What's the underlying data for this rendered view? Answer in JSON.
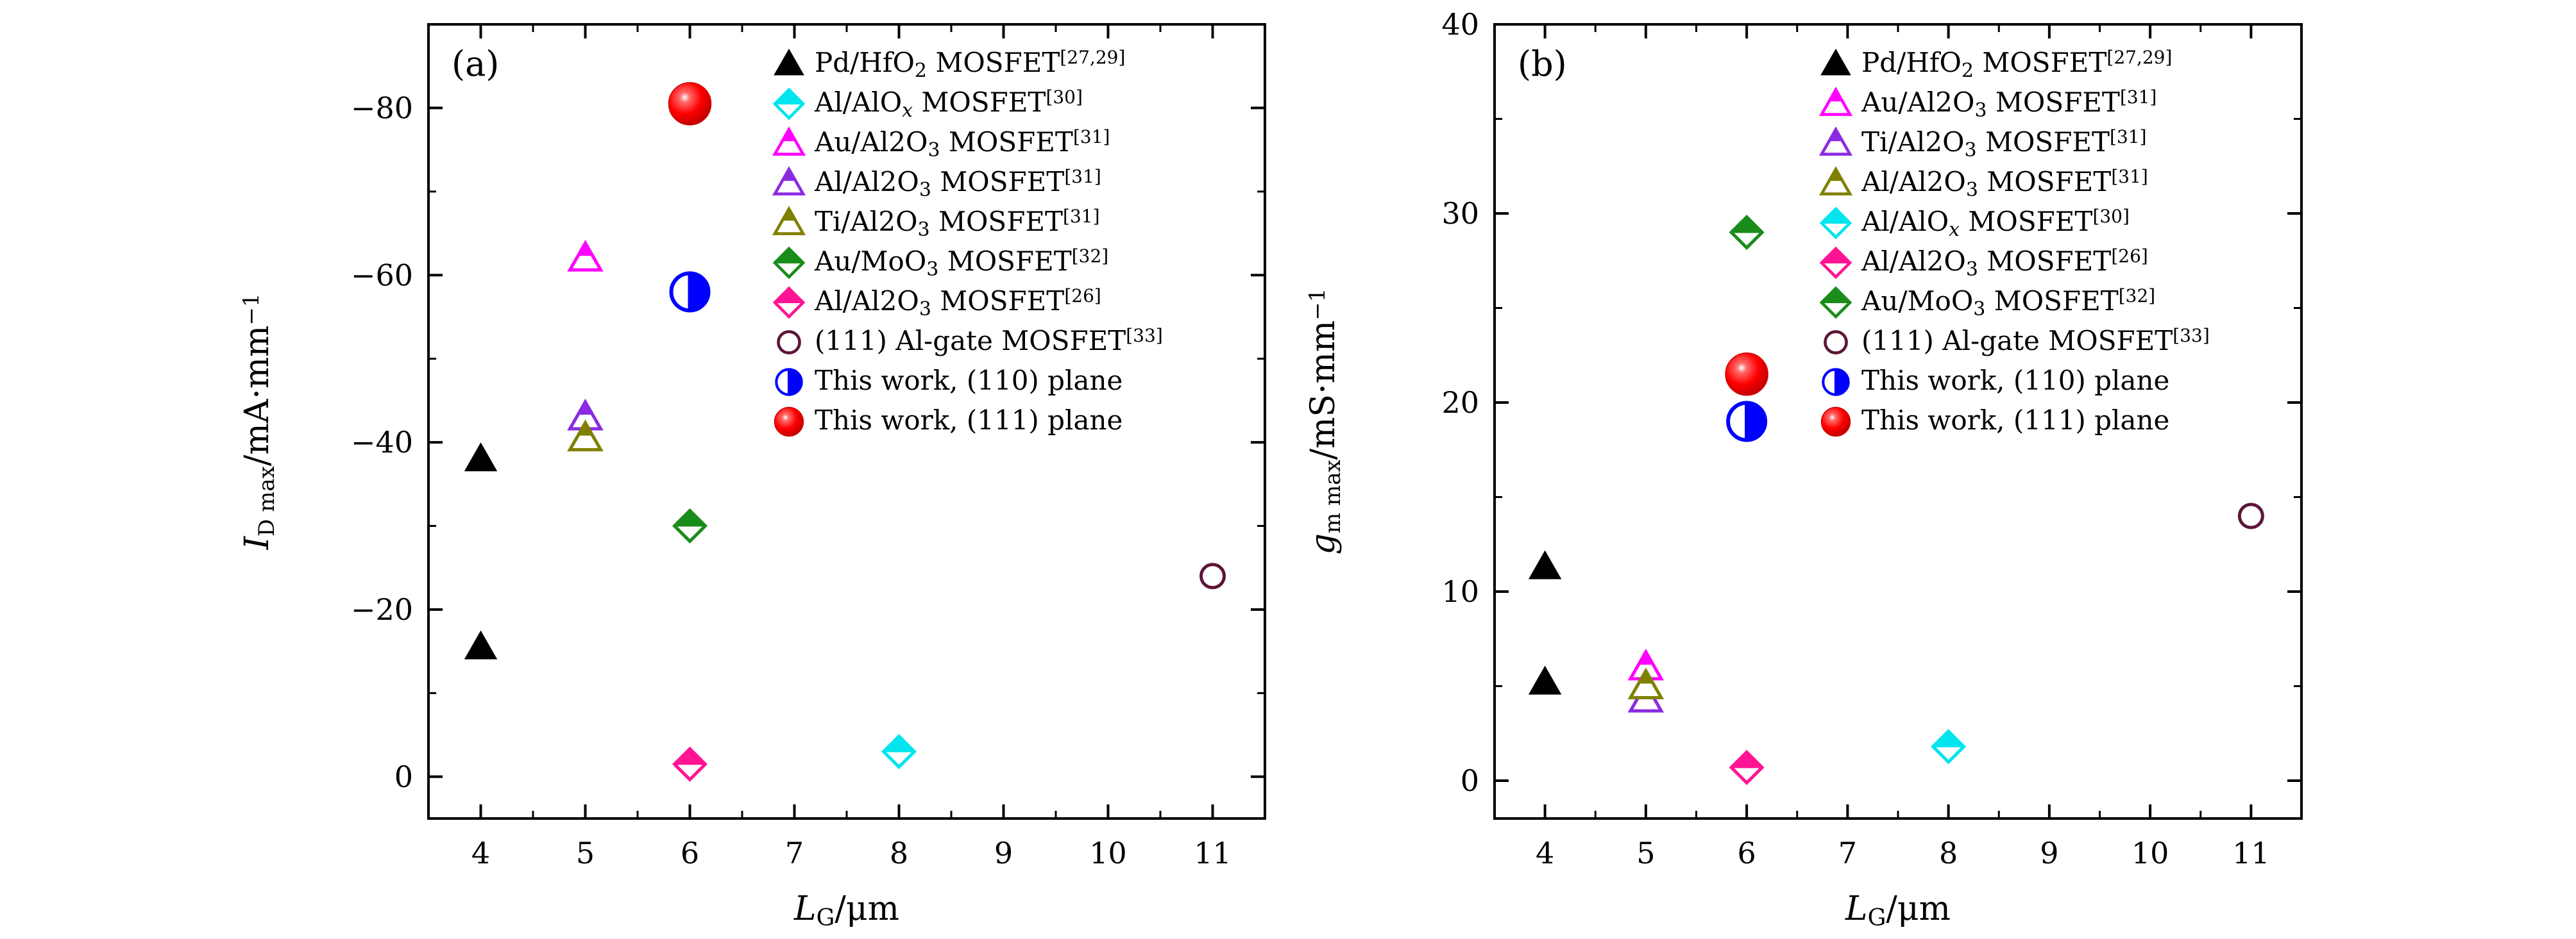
{
  "chart_data": [
    {
      "type": "scatter",
      "panel_label": "(a)",
      "xlabel": "L_G/μm",
      "ylabel": "I_D max/mA·mm^-1",
      "x_ticks": [
        "4",
        "5",
        "6",
        "7",
        "8",
        "9",
        "10",
        "11"
      ],
      "xlim": [
        3.5,
        11.5
      ],
      "ylim": [
        5,
        -90
      ],
      "y_ticks": [
        0,
        -20,
        -40,
        -60,
        -80
      ],
      "y_tick_labels": [
        "0",
        "−20",
        "−40",
        "−60",
        "−80"
      ],
      "y_inverted": true,
      "grid": false,
      "legend_placement": "top-right",
      "series": [
        {
          "name": "Pd/HfO2 MOSFET[27,29]",
          "marker": "triangle-filled",
          "color": "#000000",
          "points": [
            {
              "x": 4,
              "y": -38
            },
            {
              "x": 4,
              "y": -15.5
            }
          ]
        },
        {
          "name": "Al/AlOx MOSFET[30]",
          "marker": "diamond-half",
          "color": "#00e5ee",
          "points": [
            {
              "x": 8,
              "y": -3
            }
          ]
        },
        {
          "name": "Au/Al2O3 MOSFET[31]",
          "marker": "triangle-half",
          "color": "#ff00ff",
          "points": [
            {
              "x": 5,
              "y": -62
            }
          ]
        },
        {
          "name": "Al/Al2O3 MOSFET[31]",
          "marker": "triangle-half",
          "color": "#8a2be2",
          "points": [
            {
              "x": 5,
              "y": -43
            }
          ]
        },
        {
          "name": "Ti/Al2O3 MOSFET[31]",
          "marker": "triangle-half",
          "color": "#808000",
          "points": [
            {
              "x": 5,
              "y": -40.5
            }
          ]
        },
        {
          "name": "Au/MoO3 MOSFET[32]",
          "marker": "diamond-half",
          "color": "#1a8c1a",
          "points": [
            {
              "x": 6,
              "y": -30
            }
          ]
        },
        {
          "name": "Al/Al2O3 MOSFET[26]",
          "marker": "diamond-half",
          "color": "#ff1493",
          "points": [
            {
              "x": 6,
              "y": -1.5
            }
          ]
        },
        {
          "name": "(111) Al-gate MOSFET[33]",
          "marker": "circle-open",
          "color": "#5c1538",
          "points": [
            {
              "x": 11,
              "y": -24
            }
          ]
        },
        {
          "name": "This work, (110) plane",
          "marker": "circle-half",
          "color": "#0000ff",
          "points": [
            {
              "x": 6,
              "y": -58
            }
          ]
        },
        {
          "name": "This work, (111) plane",
          "marker": "circle-ball",
          "color": "#ff0000",
          "points": [
            {
              "x": 6,
              "y": -80.5
            }
          ]
        }
      ]
    },
    {
      "type": "scatter",
      "panel_label": "(b)",
      "xlabel": "L_G/μm",
      "ylabel": "g_m max/mS·mm^-1",
      "x_ticks": [
        "4",
        "5",
        "6",
        "7",
        "8",
        "9",
        "10",
        "11"
      ],
      "xlim": [
        3.5,
        11.5
      ],
      "ylim": [
        -2,
        40
      ],
      "y_ticks": [
        0,
        10,
        20,
        30,
        40
      ],
      "y_tick_labels": [
        "0",
        "10",
        "20",
        "30",
        "40"
      ],
      "y_inverted": false,
      "grid": false,
      "legend_placement": "top-right",
      "series": [
        {
          "name": "Pd/HfO2 MOSFET[27,29]",
          "marker": "triangle-filled",
          "color": "#000000",
          "points": [
            {
              "x": 4,
              "y": 11.3
            },
            {
              "x": 4,
              "y": 5.2
            }
          ]
        },
        {
          "name": "Au/Al2O3 MOSFET[31]",
          "marker": "triangle-half",
          "color": "#ff00ff",
          "points": [
            {
              "x": 5,
              "y": 6
            }
          ]
        },
        {
          "name": "Ti/Al2O3 MOSFET[31]",
          "marker": "triangle-half",
          "color": "#8a2be2",
          "points": [
            {
              "x": 5,
              "y": 4.3
            }
          ]
        },
        {
          "name": "Al/Al2O3 MOSFET[31]",
          "marker": "triangle-half",
          "color": "#808000",
          "points": [
            {
              "x": 5,
              "y": 5
            }
          ]
        },
        {
          "name": "Al/AlOx MOSFET[30]",
          "marker": "diamond-half",
          "color": "#00e5ee",
          "points": [
            {
              "x": 8,
              "y": 1.8
            }
          ]
        },
        {
          "name": "Al/Al2O3 MOSFET[26]",
          "marker": "diamond-half",
          "color": "#ff1493",
          "points": [
            {
              "x": 6,
              "y": 0.7
            }
          ]
        },
        {
          "name": "Au/MoO3 MOSFET[32]",
          "marker": "diamond-half",
          "color": "#1a8c1a",
          "points": [
            {
              "x": 6,
              "y": 29
            }
          ]
        },
        {
          "name": "(111) Al-gate MOSFET[33]",
          "marker": "circle-open",
          "color": "#5c1538",
          "points": [
            {
              "x": 11,
              "y": 14
            }
          ]
        },
        {
          "name": "This work, (110) plane",
          "marker": "circle-half",
          "color": "#0000ff",
          "points": [
            {
              "x": 6,
              "y": 19
            }
          ]
        },
        {
          "name": "This work, (111) plane",
          "marker": "circle-ball",
          "color": "#ff0000",
          "points": [
            {
              "x": 6,
              "y": 21.5
            }
          ]
        }
      ]
    }
  ]
}
